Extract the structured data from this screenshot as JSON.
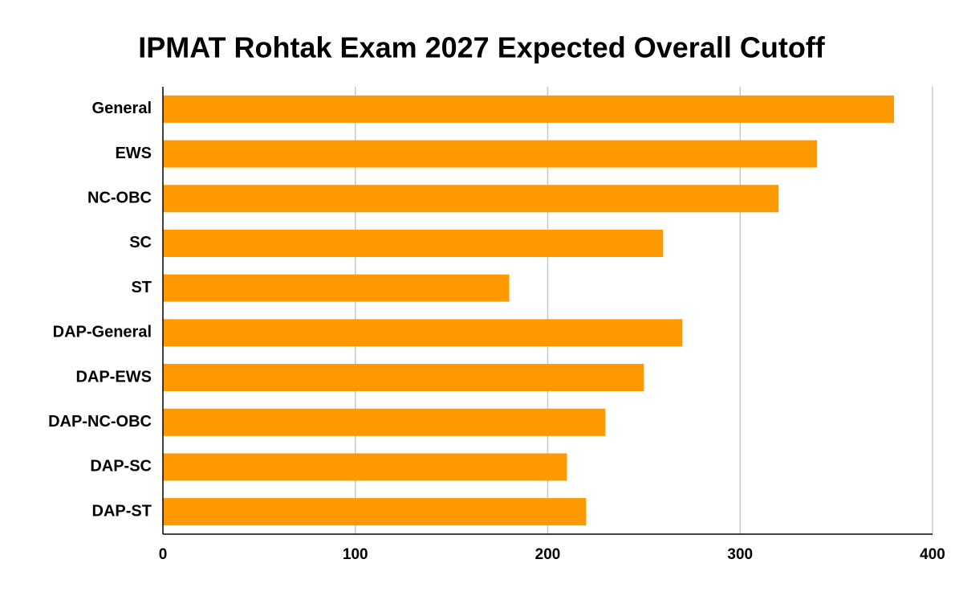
{
  "chart_data": {
    "type": "bar",
    "orientation": "horizontal",
    "title": "IPMAT Rohtak Exam 2027 Expected Overall Cutoff",
    "categories": [
      "General",
      "EWS",
      "NC-OBC",
      "SC",
      "ST",
      "DAP-General",
      "DAP-EWS",
      "DAP-NC-OBC",
      "DAP-SC",
      "DAP-ST"
    ],
    "values": [
      380,
      340,
      320,
      260,
      180,
      270,
      250,
      230,
      210,
      220
    ],
    "color": "#ff9900",
    "xlim": [
      0,
      400
    ],
    "xticks": [
      0,
      100,
      200,
      300,
      400
    ],
    "grid": true
  }
}
